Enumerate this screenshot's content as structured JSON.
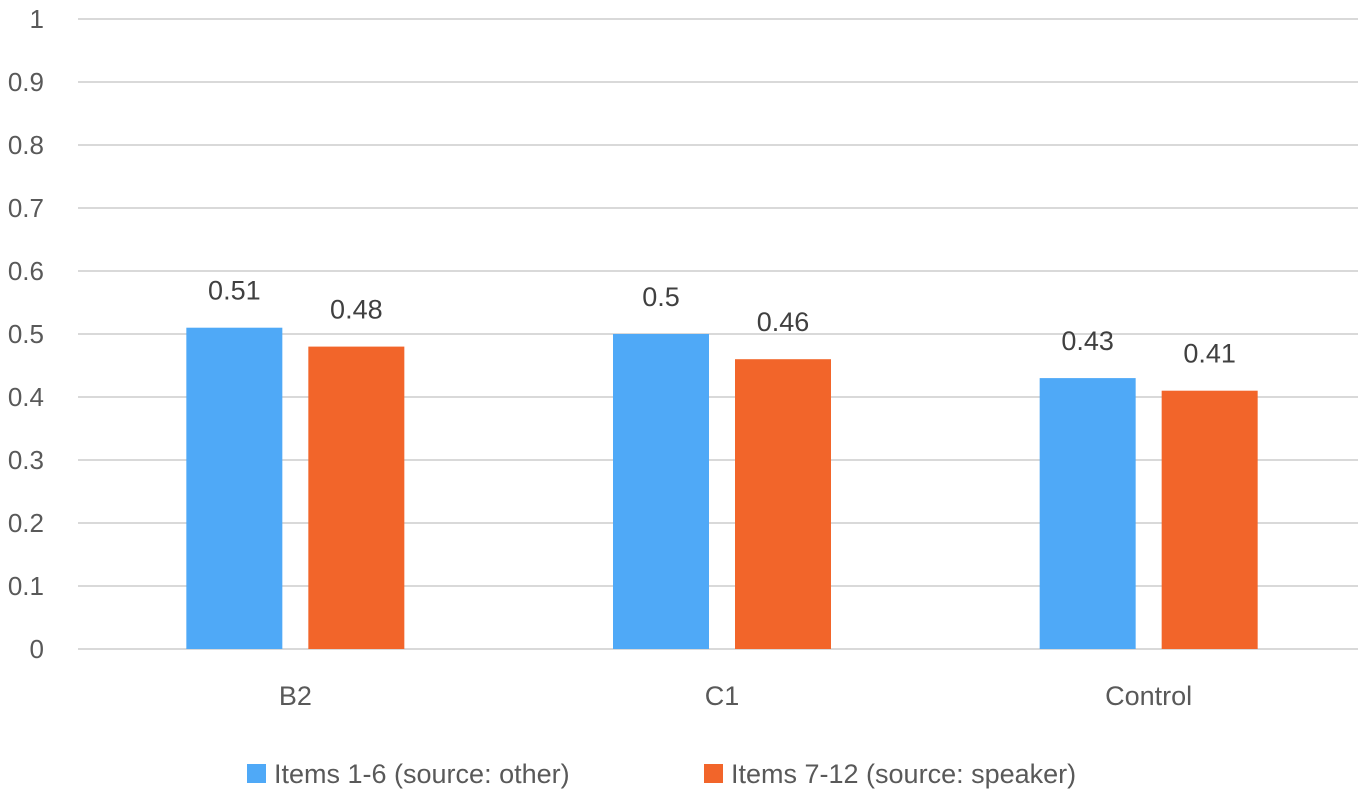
{
  "chart_data": {
    "type": "bar",
    "categories": [
      "B2",
      "C1",
      "Control"
    ],
    "series": [
      {
        "name": "Items 1-6 (source: other)",
        "values": [
          0.51,
          0.5,
          0.43
        ],
        "color": "#4FA9F7"
      },
      {
        "name": "Items 7-12 (source: speaker)",
        "values": [
          0.48,
          0.46,
          0.41
        ],
        "color": "#F2652A"
      }
    ],
    "data_labels": [
      [
        "0.51",
        "0.5",
        "0.43"
      ],
      [
        "0.48",
        "0.46",
        "0.41"
      ]
    ],
    "yticks": [
      "0",
      "0.1",
      "0.2",
      "0.3",
      "0.4",
      "0.5",
      "0.6",
      "0.7",
      "0.8",
      "0.9",
      "1"
    ],
    "ylim": [
      0,
      1
    ],
    "grid": true,
    "legend_position": "bottom",
    "title": "",
    "xlabel": "",
    "ylabel": ""
  }
}
